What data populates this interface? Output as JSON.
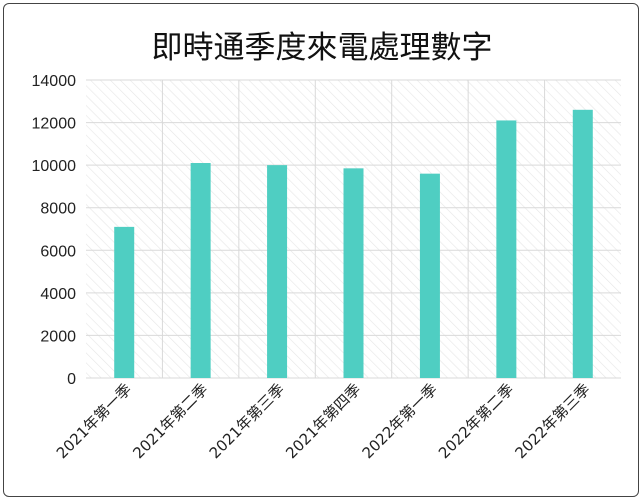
{
  "chart_data": {
    "type": "bar",
    "title": "即時通季度來電處理數字",
    "categories": [
      "2021年第一季",
      "2021年第二季",
      "2021年第三季",
      "2021年第四季",
      "2022年第一季",
      "2022年第二季",
      "2022年第三季"
    ],
    "values": [
      7100,
      10100,
      10000,
      9850,
      9600,
      12100,
      12600
    ],
    "ylim": [
      0,
      14000
    ],
    "yticks": [
      0,
      2000,
      4000,
      6000,
      8000,
      10000,
      12000,
      14000
    ],
    "xlabel": "",
    "ylabel": "",
    "grid": true,
    "legend": "none",
    "colors": {
      "bar": "#4fcec2",
      "grid": "#d9d9d9",
      "hatch": "#e6e6e6"
    }
  }
}
